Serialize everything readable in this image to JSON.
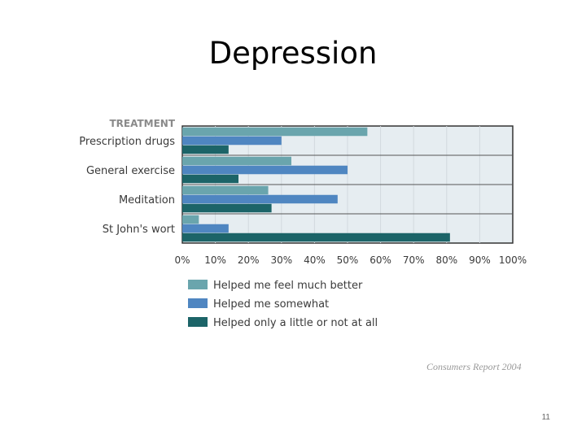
{
  "slide": {
    "title": "Depression",
    "source": "Consumers Report 2004",
    "page_number": "11"
  },
  "chart_data": {
    "type": "bar",
    "orientation": "horizontal",
    "category_header": "TREATMENT",
    "categories": [
      "Prescription drugs",
      "General exercise",
      "Meditation",
      "St John's wort"
    ],
    "series": [
      {
        "name": "Helped me feel much better",
        "color": "#6aa5ad",
        "values": [
          56,
          33,
          26,
          5
        ]
      },
      {
        "name": "Helped me somewhat",
        "color": "#4f86c1",
        "values": [
          30,
          50,
          47,
          14
        ]
      },
      {
        "name": "Helped only a little or not at all",
        "color": "#1c6468",
        "values": [
          14,
          17,
          27,
          81
        ]
      }
    ],
    "xlim": [
      0,
      100
    ],
    "xticks": [
      "0%",
      "10%",
      "20%",
      "30%",
      "40%",
      "50%",
      "60%",
      "70%",
      "80%",
      "90%",
      "100%"
    ],
    "grid": true,
    "legend_position": "bottom"
  }
}
